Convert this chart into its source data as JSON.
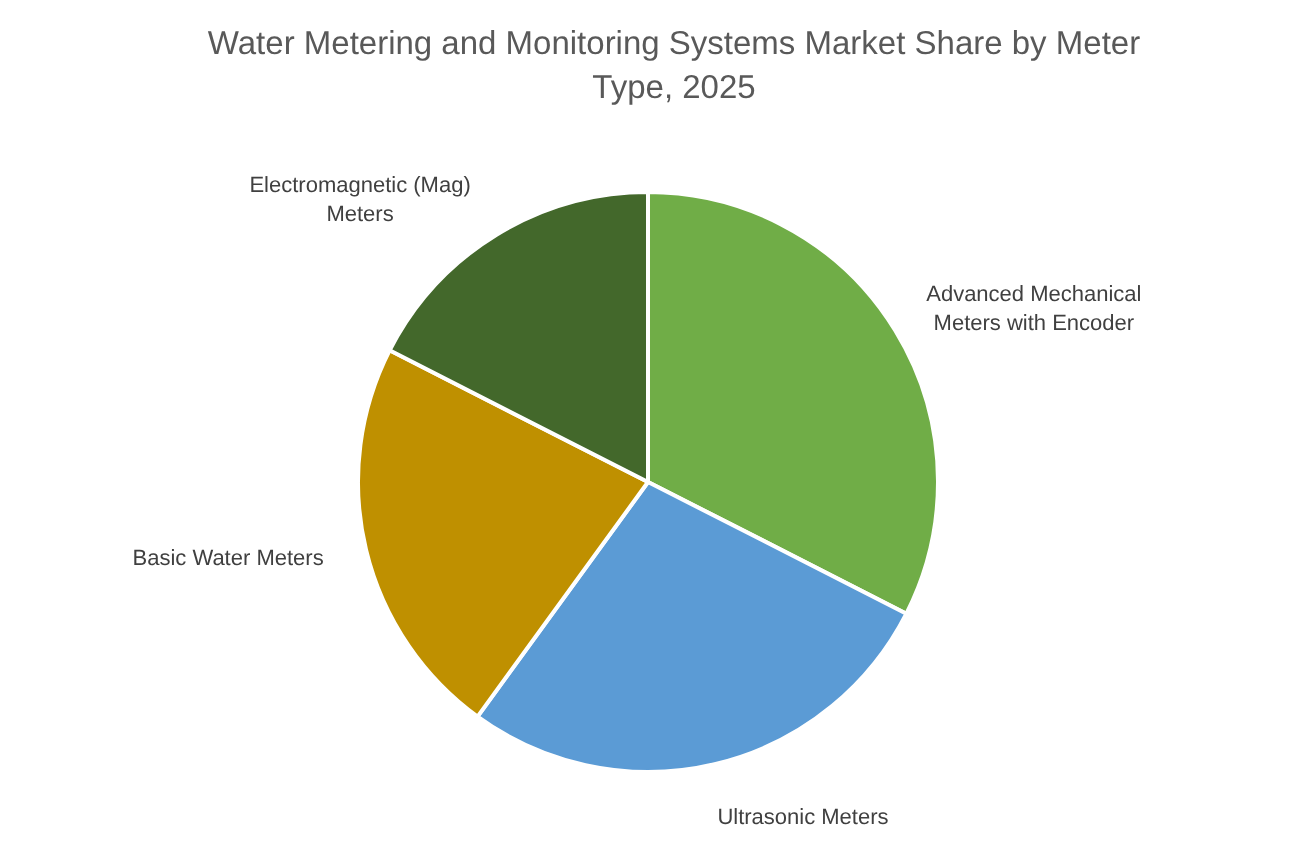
{
  "chart_data": {
    "type": "pie",
    "title": "Water Metering and Monitoring Systems Market Share by Meter Type, 2025",
    "categories": [
      "Advanced Mechanical Meters with Encoder",
      "Ultrasonic Meters",
      "Basic Water Meters",
      "Electromagnetic (Mag) Meters"
    ],
    "values": [
      32.5,
      27.5,
      22.5,
      17.5
    ],
    "colors": [
      "#70ad47",
      "#5b9bd5",
      "#bf9000",
      "#43682b"
    ]
  }
}
